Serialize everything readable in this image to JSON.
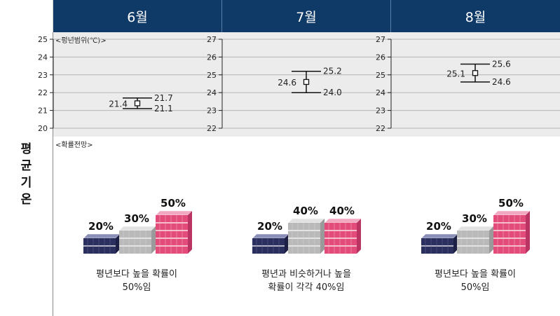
{
  "months": [
    "6월",
    "7월",
    "8월"
  ],
  "row_label": [
    "평",
    "균",
    "기",
    "온"
  ],
  "range_caption": "<평년범위(℃)>",
  "prob_caption": "<확률전망>",
  "chart_data": [
    {
      "type": "errorbar",
      "month": "6월",
      "ylim": [
        20,
        25
      ],
      "yticks": [
        20,
        21,
        22,
        23,
        24,
        25
      ],
      "low": 21.1,
      "mid": 21.4,
      "high": 21.7,
      "probabilities": [
        20,
        30,
        50
      ],
      "prob_labels": [
        "20%",
        "30%",
        "50%"
      ],
      "description": [
        "평년보다 높을 확률이",
        "50%임"
      ]
    },
    {
      "type": "errorbar",
      "month": "7월",
      "ylim": [
        22,
        27
      ],
      "yticks": [
        22,
        23,
        24,
        25,
        26,
        27
      ],
      "low": 24.0,
      "mid": 24.6,
      "high": 25.2,
      "probabilities": [
        20,
        40,
        40
      ],
      "prob_labels": [
        "20%",
        "40%",
        "40%"
      ],
      "description": [
        "평년과 비슷하거나 높을",
        "확률이 각각 40%임"
      ]
    },
    {
      "type": "errorbar",
      "month": "8월",
      "ylim": [
        22,
        27
      ],
      "yticks": [
        22,
        23,
        24,
        25,
        26,
        27
      ],
      "low": 24.6,
      "mid": 25.1,
      "high": 25.6,
      "probabilities": [
        20,
        30,
        50
      ],
      "prob_labels": [
        "20%",
        "30%",
        "50%"
      ],
      "description": [
        "평년보다 높을 확률이",
        "50%임"
      ]
    }
  ],
  "colors": {
    "header": "#0f3a68",
    "below": "#2b2f5e",
    "normal": "#b9b9b9",
    "above": "#e34b7a"
  }
}
